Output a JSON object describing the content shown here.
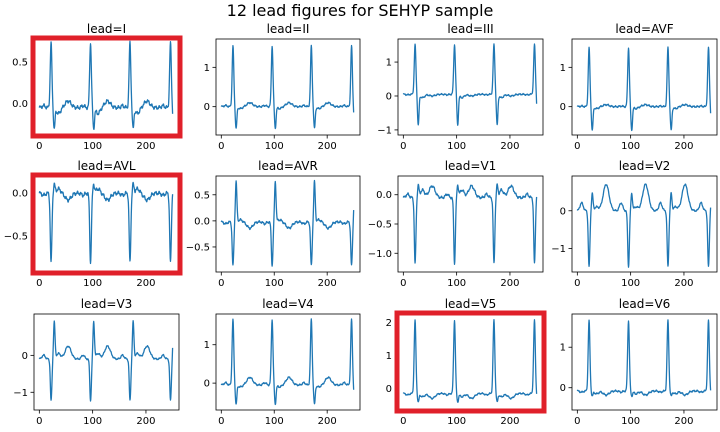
{
  "figure_title": "12 lead figures for SEHYP sample",
  "colors": {
    "trace": "#1f77b4",
    "highlight": "#e0202a"
  },
  "chart_data": [
    {
      "type": "line",
      "title": "lead=I",
      "xlim": [
        -10,
        262
      ],
      "ylim": [
        -0.38,
        0.78
      ],
      "xticks": [
        0,
        100,
        200
      ],
      "yticks": [
        0.0,
        0.5
      ],
      "ytick_labels": [
        "0.0",
        "0.5"
      ],
      "highlighted": true,
      "beat": {
        "r": [
          0,
          0.73
        ],
        "s": [
          6,
          -0.3
        ],
        "q": [
          -2,
          -0.05
        ],
        "t": [
          0.08
        ],
        "bl": [
          -0.05
        ],
        "st": [
          -0.12
        ]
      }
    },
    {
      "type": "line",
      "title": "lead=II",
      "xlim": [
        -10,
        262
      ],
      "ylim": [
        -0.72,
        1.72
      ],
      "xticks": [
        0,
        100,
        200
      ],
      "yticks": [
        0,
        1
      ],
      "ytick_labels": [
        "0",
        "1"
      ],
      "highlighted": false,
      "beat": {
        "r": [
          0,
          1.55
        ],
        "s": [
          6,
          -0.55
        ],
        "q": [
          -2,
          -0.1
        ],
        "t": [
          0.1
        ],
        "bl": [
          0.0
        ],
        "st": [
          -0.05
        ]
      }
    },
    {
      "type": "line",
      "title": "lead=III",
      "xlim": [
        -10,
        262
      ],
      "ylim": [
        -1.15,
        1.68
      ],
      "xticks": [
        0,
        100,
        200
      ],
      "yticks": [
        -1,
        0,
        1
      ],
      "ytick_labels": [
        "−1",
        "0",
        "1"
      ],
      "highlighted": false,
      "beat": {
        "r": [
          0,
          1.52
        ],
        "s": [
          6,
          -0.85
        ],
        "q": [
          -2,
          0.0
        ],
        "t": [
          -0.05
        ],
        "bl": [
          0.05
        ],
        "st": [
          -0.05
        ]
      }
    },
    {
      "type": "line",
      "title": "lead=AVF",
      "xlim": [
        -10,
        262
      ],
      "ylim": [
        -0.72,
        1.72
      ],
      "xticks": [
        0,
        100,
        200
      ],
      "yticks": [
        0,
        1
      ],
      "ytick_labels": [
        "0",
        "1"
      ],
      "highlighted": false,
      "beat": {
        "r": [
          0,
          1.5
        ],
        "s": [
          6,
          -0.6
        ],
        "q": [
          -2,
          -0.05
        ],
        "t": [
          0.05
        ],
        "bl": [
          0.0
        ],
        "st": [
          -0.05
        ]
      }
    },
    {
      "type": "line",
      "title": "lead=AVL",
      "xlim": [
        -10,
        262
      ],
      "ylim": [
        -0.92,
        0.2
      ],
      "xticks": [
        0,
        100,
        200
      ],
      "yticks": [
        -0.5,
        0.0
      ],
      "ytick_labels": [
        "−0.5",
        "0.0"
      ],
      "highlighted": true,
      "beat": {
        "r": [
          0,
          -0.82
        ],
        "s": [
          6,
          0.1
        ],
        "q": [
          -2,
          0.05
        ],
        "t": [
          -0.08
        ],
        "bl": [
          0.0
        ],
        "st": [
          0.05
        ]
      }
    },
    {
      "type": "line",
      "title": "lead=AVR",
      "xlim": [
        -10,
        262
      ],
      "ylim": [
        -0.98,
        0.86
      ],
      "xticks": [
        0,
        100,
        200
      ],
      "yticks": [
        -0.5,
        0.0,
        0.5
      ],
      "ytick_labels": [
        "−0.5",
        "0.0",
        "0.5"
      ],
      "highlighted": false,
      "beat": {
        "r": [
          0,
          -0.87
        ],
        "s": [
          6,
          0.75
        ],
        "q": [
          -2,
          0.05
        ],
        "t": [
          -0.12
        ],
        "bl": [
          -0.02
        ],
        "st": [
          0.02
        ]
      }
    },
    {
      "type": "line",
      "title": "lead=V1",
      "xlim": [
        -10,
        262
      ],
      "ylim": [
        -1.32,
        0.32
      ],
      "xticks": [
        0,
        100,
        200
      ],
      "yticks": [
        -1.0,
        -0.5,
        0.0
      ],
      "ytick_labels": [
        "−1.0",
        "−0.5",
        "0.0"
      ],
      "highlighted": false,
      "beat": {
        "r": [
          0,
          -1.2
        ],
        "s": [
          6,
          0.15
        ],
        "q": [
          -2,
          0.08
        ],
        "t": [
          0.2
        ],
        "bl": [
          -0.05
        ],
        "st": [
          0.08
        ]
      }
    },
    {
      "type": "line",
      "title": "lead=V2",
      "xlim": [
        -10,
        262
      ],
      "ylim": [
        -1.62,
        0.92
      ],
      "xticks": [
        0,
        100,
        200
      ],
      "yticks": [
        -1,
        0
      ],
      "ytick_labels": [
        "−1",
        "0"
      ],
      "highlighted": false,
      "beat": {
        "r": [
          0,
          -1.5
        ],
        "s": [
          6,
          0.45
        ],
        "q": [
          -2,
          0.1
        ],
        "t": [
          0.7
        ],
        "bl": [
          0.0
        ],
        "st": [
          0.1
        ]
      }
    },
    {
      "type": "line",
      "title": "lead=V3",
      "xlim": [
        -10,
        262
      ],
      "ylim": [
        -1.48,
        1.12
      ],
      "xticks": [
        0,
        100,
        200
      ],
      "yticks": [
        -1,
        0
      ],
      "ytick_labels": [
        "−1",
        "0"
      ],
      "highlighted": false,
      "beat": {
        "r": [
          0,
          -1.25
        ],
        "s": [
          6,
          0.9
        ],
        "q": [
          -2,
          0.05
        ],
        "t": [
          0.35
        ],
        "bl": [
          -0.1
        ],
        "st": [
          0.05
        ]
      }
    },
    {
      "type": "line",
      "title": "lead=V4",
      "xlim": [
        -10,
        262
      ],
      "ylim": [
        -0.7,
        1.8
      ],
      "xticks": [
        0,
        100,
        200
      ],
      "yticks": [
        0,
        1
      ],
      "ytick_labels": [
        "0",
        "1"
      ],
      "highlighted": false,
      "beat": {
        "r": [
          0,
          1.65
        ],
        "s": [
          6,
          -0.55
        ],
        "q": [
          -2,
          -0.05
        ],
        "t": [
          0.2
        ],
        "bl": [
          -0.05
        ],
        "st": [
          -0.1
        ]
      }
    },
    {
      "type": "line",
      "title": "lead=V5",
      "xlim": [
        -10,
        262
      ],
      "ylim": [
        -0.65,
        2.25
      ],
      "xticks": [
        0,
        100,
        200
      ],
      "yticks": [
        0,
        1,
        2
      ],
      "ytick_labels": [
        "0",
        "1",
        "2"
      ],
      "highlighted": true,
      "beat": {
        "r": [
          0,
          2.05
        ],
        "s": [
          6,
          -0.4
        ],
        "q": [
          -2,
          -0.1
        ],
        "t": [
          -0.15
        ],
        "bl": [
          -0.15
        ],
        "st": [
          -0.25
        ]
      }
    },
    {
      "type": "line",
      "title": "lead=V6",
      "xlim": [
        -10,
        262
      ],
      "ylim": [
        -0.55,
        1.82
      ],
      "xticks": [
        0,
        100,
        200
      ],
      "yticks": [
        0,
        1
      ],
      "ytick_labels": [
        "0",
        "1"
      ],
      "highlighted": false,
      "beat": {
        "r": [
          0,
          1.65
        ],
        "s": [
          6,
          -0.2
        ],
        "q": [
          -2,
          -0.05
        ],
        "t": [
          -0.1
        ],
        "bl": [
          -0.08
        ],
        "st": [
          -0.15
        ]
      }
    }
  ]
}
